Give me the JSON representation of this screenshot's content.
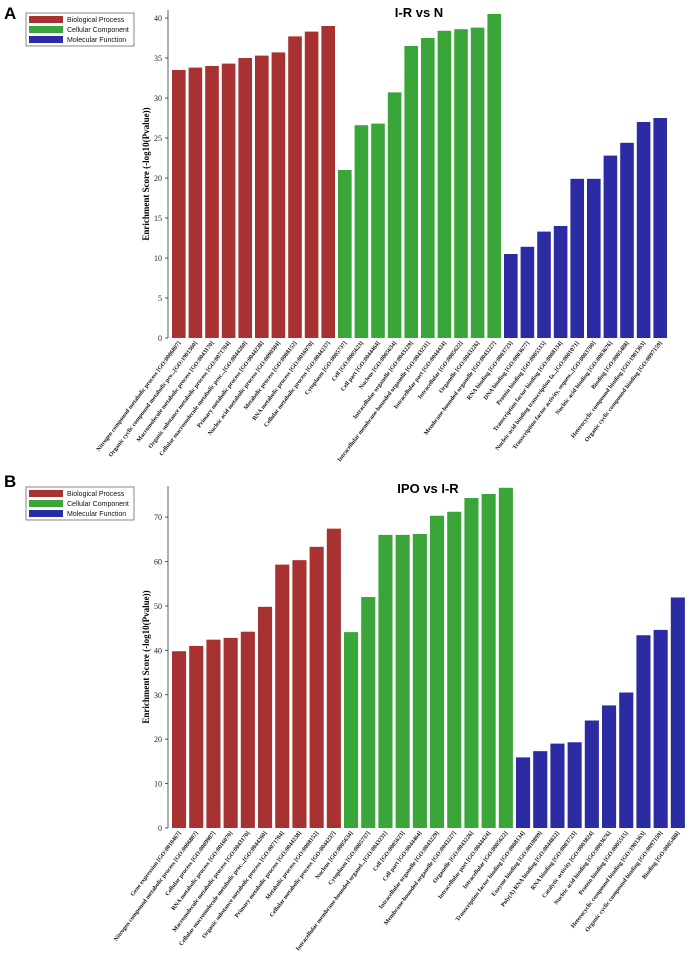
{
  "colors": {
    "biological_process": "#a83232",
    "cellular_component": "#3aa63a",
    "molecular_function": "#2b2ba3"
  },
  "chart_data": [
    {
      "panel": "A",
      "type": "bar",
      "title": "I-R vs N",
      "ylabel": "Enrichment Score (-log10(Pvalue))",
      "xlabel": "",
      "ylim": [
        0,
        41
      ],
      "yticks": [
        0,
        5,
        10,
        15,
        20,
        25,
        30,
        35,
        40
      ],
      "legend": [
        "Biological Process",
        "Cellular Component",
        "Molecular Function"
      ],
      "legend_position": "top-left",
      "series": [
        {
          "name": "Biological Process",
          "categories": [
            "Nitrogen compound metabolic process [GO:0006807]",
            "Organic cyclic compound metabolic pro...[GO:1901360]",
            "Macromolecule metabolic process [GO:0043170]",
            "Organic substance metabolic process [GO:0071704]",
            "Cellular macromolecule metabolic proc...[GO:0044260]",
            "Primary metabolic process [GO:0044238]",
            "Nucleic acid metabolic process [GO:0090304]",
            "Metabolic process [GO:0008152]",
            "RNA metabolic process [GO:0016070]",
            "Cellular metabolic process [GO:0044237]"
          ],
          "values": [
            33.5,
            33.8,
            34.0,
            34.3,
            35.0,
            35.3,
            35.7,
            37.7,
            38.3,
            39.0
          ]
        },
        {
          "name": "Cellular Component",
          "categories": [
            "Cytoplasm [GO:0005737]",
            "Cell [GO:0005623]",
            "Cell part [GO:0044464]",
            "Nucleus [GO:0005634]",
            "Intracellular organelle [GO:0043229]",
            "Intracellular membrane-bounded organelle [GO:0043231]",
            "Intracellular part [GO:0044424]",
            "Intracellular [GO:0005622]",
            "Organelle [GO:0043226]",
            "Membrane-bounded organelle [GO:0043227]"
          ],
          "values": [
            21.0,
            26.6,
            26.8,
            30.7,
            36.5,
            37.5,
            38.4,
            38.6,
            38.8,
            40.5
          ]
        },
        {
          "name": "Molecular Function",
          "categories": [
            "RNA binding [GO:0003723]",
            "DNA binding [GO:0003677]",
            "Protein binding [GO:0005515]",
            "Transcription factor binding [GO:0008134]",
            "Nucleic acid binding transcription fa...[GO:0001071]",
            "Transcription factor activity, sequen...[GO:0003700]",
            "Nucleic acid binding [GO:0003676]",
            "Binding [GO:0005488]",
            "Heterocyclic compound binding [GO:1901363]",
            "Organic cyclic compound binding [GO:0097159]"
          ],
          "values": [
            10.5,
            11.4,
            13.3,
            14.0,
            19.9,
            19.9,
            22.8,
            24.4,
            27.0,
            27.5
          ]
        }
      ]
    },
    {
      "panel": "B",
      "type": "bar",
      "title": "IPO vs I-R",
      "ylabel": "Enrichment Score (-log10(Pvalue))",
      "xlabel": "",
      "ylim": [
        0,
        77
      ],
      "yticks": [
        0,
        10,
        20,
        30,
        40,
        50,
        60,
        70
      ],
      "legend": [
        "Biological Process",
        "Cellular Component",
        "Molecular Function"
      ],
      "legend_position": "top-left",
      "series": [
        {
          "name": "Biological Process",
          "categories": [
            "Gene expression [GO:0010467]",
            "Nitrogen compound metabolic process [GO:0006807]",
            "Cellular process [GO:0009987]",
            "RNA metabolic process [GO:0016070]",
            "Macromolecule metabolic process [GO:0043170]",
            "Cellular macromolecule metabolic proc...[GO:0044260]",
            "Organic substance metabolic process [GO:0071704]",
            "Primary metabolic process [GO:0044238]",
            "Metabolic process [GO:0008152]",
            "Cellular metabolic process [GO:0044237]"
          ],
          "values": [
            39.8,
            41.0,
            42.4,
            42.8,
            44.2,
            49.8,
            59.3,
            60.3,
            63.3,
            67.4
          ]
        },
        {
          "name": "Cellular Component",
          "categories": [
            "Nucleus [GO:0005634]",
            "Cytoplasm [GO:0005737]",
            "Intracellular membrane-bounded organel...[GO:0043231]",
            "Cell [GO:0005623]",
            "Cell part [GO:0044464]",
            "Intracellular organelle [GO:0043229]",
            "Membrane-bounded organelle [GO:0043227]",
            "Organelle [GO:0043226]",
            "Intracellular part [GO:0044424]",
            "Intracellular [GO:0005622]"
          ],
          "values": [
            44.1,
            52.0,
            66.0,
            66.0,
            66.2,
            70.3,
            71.2,
            74.3,
            75.2,
            76.6
          ]
        },
        {
          "name": "Molecular Function",
          "categories": [
            "Transcription factor binding [GO:0008134]",
            "Enzyme binding [GO:0019899]",
            "Poly(A) RNA binding [GO:0044822]",
            "RNA binding [GO:0003723]",
            "Catalytic activity [GO:0003824]",
            "Nucleic acid binding [GO:0003676]",
            "Protein binding [GO:0005515]",
            "Heterocyclic compound binding [GO:1901363]",
            "Organic cyclic compound binding [GO:0097159]",
            "Binding [GO:0005488]"
          ],
          "values": [
            15.9,
            17.3,
            19.0,
            19.3,
            24.2,
            27.6,
            30.5,
            43.4,
            44.6,
            51.9
          ]
        }
      ]
    }
  ]
}
